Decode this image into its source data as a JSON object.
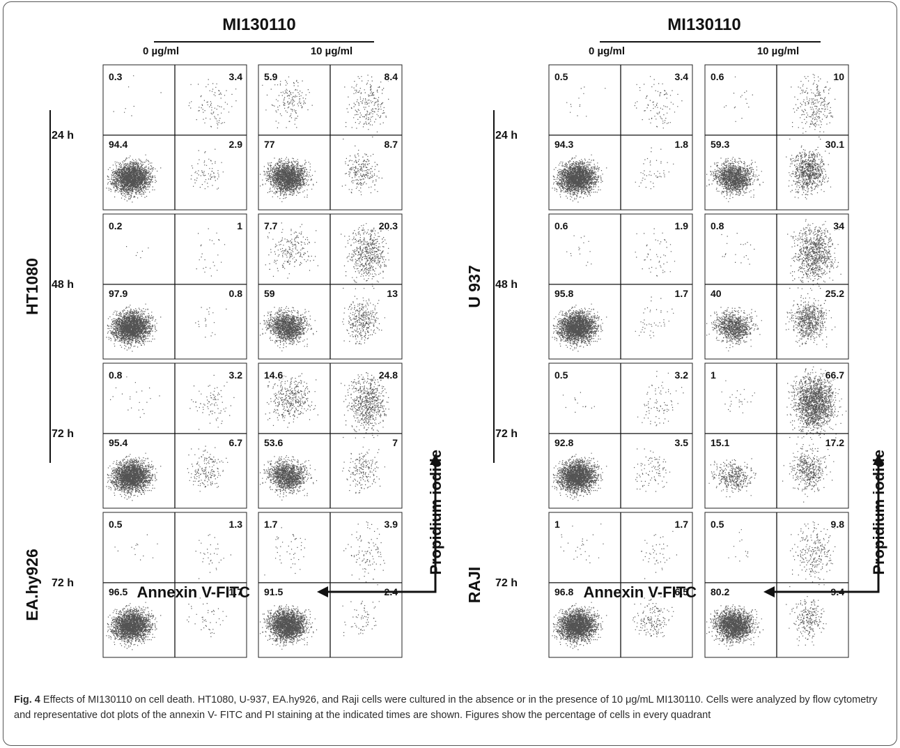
{
  "figure": {
    "title_left": "MI130110",
    "title_right": "MI130110",
    "dose_labels": [
      "0 µg/ml",
      "10 µg/ml"
    ],
    "x_axis_label": "Annexin V-FITC",
    "y_axis_label": "Propidium iodide",
    "left_panel": {
      "groups": [
        {
          "cell_line": "HT1080",
          "rows": [
            0,
            1,
            2
          ]
        },
        {
          "cell_line": "EA.hy926",
          "rows": [
            3
          ]
        }
      ],
      "rows": [
        {
          "time": "24 h",
          "plots": [
            {
              "ul": "0.3",
              "ur": "3.4",
              "ll": "94.4",
              "lr": "2.9"
            },
            {
              "ul": "5.9",
              "ur": "8.4",
              "ll": "77",
              "lr": "8.7"
            }
          ]
        },
        {
          "time": "48 h",
          "plots": [
            {
              "ul": "0.2",
              "ur": "1",
              "ll": "97.9",
              "lr": "0.8"
            },
            {
              "ul": "7.7",
              "ur": "20.3",
              "ll": "59",
              "lr": "13"
            }
          ]
        },
        {
          "time": "72 h",
          "plots": [
            {
              "ul": "0.8",
              "ur": "3.2",
              "ll": "95.4",
              "lr": "6.7"
            },
            {
              "ul": "14.6",
              "ur": "24.8",
              "ll": "53.6",
              "lr": "7"
            }
          ]
        },
        {
          "time": "72 h",
          "plots": [
            {
              "ul": "0.5",
              "ur": "1.3",
              "ll": "96.5",
              "lr": "1.7"
            },
            {
              "ul": "1.7",
              "ur": "3.9",
              "ll": "91.5",
              "lr": "2.4"
            }
          ]
        }
      ]
    },
    "right_panel": {
      "groups": [
        {
          "cell_line": "U 937",
          "rows": [
            0,
            1,
            2
          ]
        },
        {
          "cell_line": "RAJI",
          "rows": [
            3
          ]
        }
      ],
      "rows": [
        {
          "time": "24 h",
          "plots": [
            {
              "ul": "0.5",
              "ur": "3.4",
              "ll": "94.3",
              "lr": "1.8"
            },
            {
              "ul": "0.6",
              "ur": "10",
              "ll": "59.3",
              "lr": "30.1"
            }
          ]
        },
        {
          "time": "48 h",
          "plots": [
            {
              "ul": "0.6",
              "ur": "1.9",
              "ll": "95.8",
              "lr": "1.7"
            },
            {
              "ul": "0.8",
              "ur": "34",
              "ll": "40",
              "lr": "25.2"
            }
          ]
        },
        {
          "time": "72 h",
          "plots": [
            {
              "ul": "0.5",
              "ur": "3.2",
              "ll": "92.8",
              "lr": "3.5"
            },
            {
              "ul": "1",
              "ur": "66.7",
              "ll": "15.1",
              "lr": "17.2"
            }
          ]
        },
        {
          "time": "72 h",
          "plots": [
            {
              "ul": "1",
              "ur": "1.7",
              "ll": "96.8",
              "lr": "6.5"
            },
            {
              "ul": "0.5",
              "ur": "9.8",
              "ll": "80.2",
              "lr": "9.4"
            }
          ]
        }
      ]
    }
  },
  "caption": {
    "label": "Fig. 4",
    "text": " Effects of MI130110 on cell death. HT1080, U-937, EA.hy926, and Raji cells were cultured in the absence or in the presence of 10 μg/mL MI130110. Cells were analyzed by flow cytometry and representative dot plots of the annexin V- FITC and PI staining at the indicated times are shown. Figures show the percentage of cells in every quadrant"
  },
  "colors": {
    "dots": "#1a1a1a",
    "frame": "#555555",
    "text": "#111111"
  }
}
